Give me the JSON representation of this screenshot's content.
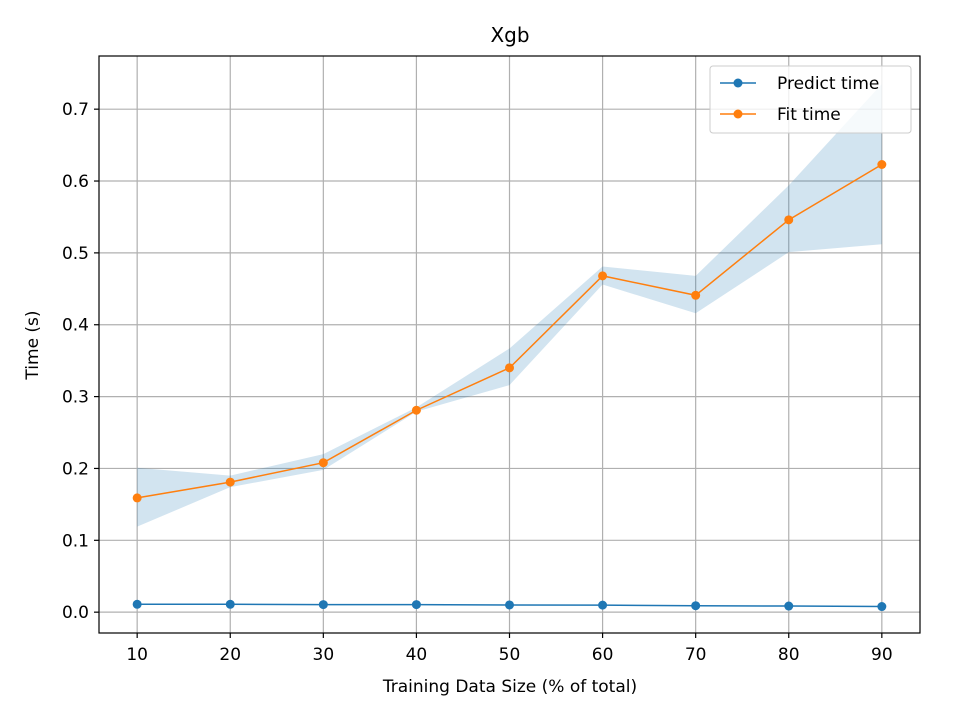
{
  "chart_data": {
    "type": "line",
    "title": "Xgb",
    "xlabel": "Training Data Size (% of total)",
    "ylabel": "Time (s)",
    "x": [
      10,
      20,
      30,
      40,
      50,
      60,
      70,
      80,
      90
    ],
    "xticks": [
      "10",
      "20",
      "30",
      "40",
      "50",
      "60",
      "70",
      "80",
      "90"
    ],
    "yticks": [
      "0.0",
      "0.1",
      "0.2",
      "0.3",
      "0.4",
      "0.5",
      "0.6",
      "0.7"
    ],
    "xlim": [
      5.9,
      94.1
    ],
    "ylim": [
      -0.029,
      0.774
    ],
    "grid": true,
    "legend_position": "top-right",
    "series": [
      {
        "name": "Predict time",
        "color": "#1f77b4",
        "marker": "circle",
        "values": [
          0.011,
          0.011,
          0.0105,
          0.0105,
          0.01,
          0.0098,
          0.009,
          0.0085,
          0.0078
        ]
      },
      {
        "name": "Fit time",
        "color": "#ff7f0e",
        "marker": "circle",
        "values": [
          0.159,
          0.181,
          0.208,
          0.281,
          0.34,
          0.468,
          0.441,
          0.546,
          0.623
        ],
        "band_lower": [
          0.119,
          0.174,
          0.198,
          0.279,
          0.316,
          0.456,
          0.416,
          0.501,
          0.512
        ],
        "band_upper": [
          0.201,
          0.19,
          0.22,
          0.285,
          0.367,
          0.481,
          0.468,
          0.594,
          0.735
        ],
        "band_color": "#1f77b4",
        "band_opacity": 0.2
      }
    ]
  }
}
